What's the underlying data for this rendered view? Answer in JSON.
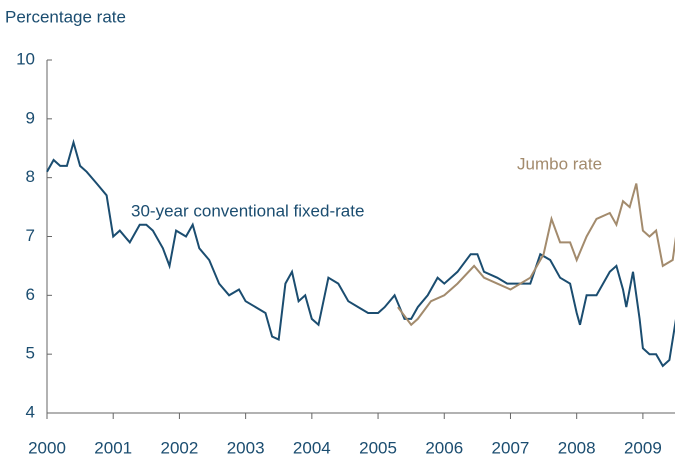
{
  "chart_data": {
    "type": "line",
    "y_axis_label": "Percentage rate",
    "annotations": [
      "30-year conventional fixed-rate",
      "Jumbo rate"
    ],
    "xlim": [
      2000,
      2009.5
    ],
    "xticks": [
      2000,
      2001,
      2002,
      2003,
      2004,
      2005,
      2006,
      2007,
      2008,
      2009
    ],
    "ylim": [
      4,
      10
    ],
    "yticks": [
      4,
      5,
      6,
      7,
      8,
      9,
      10
    ],
    "grid": false,
    "series": [
      {
        "name": "30-year conventional fixed-rate",
        "color": "#1b4d70",
        "x": [
          2000.0,
          2000.1,
          2000.2,
          2000.3,
          2000.4,
          2000.5,
          2000.6,
          2000.75,
          2000.9,
          2001.0,
          2001.1,
          2001.25,
          2001.4,
          2001.5,
          2001.6,
          2001.75,
          2001.85,
          2001.95,
          2002.1,
          2002.2,
          2002.3,
          2002.45,
          2002.6,
          2002.75,
          2002.9,
          2003.0,
          2003.15,
          2003.3,
          2003.4,
          2003.5,
          2003.6,
          2003.7,
          2003.8,
          2003.9,
          2004.0,
          2004.1,
          2004.25,
          2004.4,
          2004.55,
          2004.7,
          2004.85,
          2005.0,
          2005.1,
          2005.25,
          2005.4,
          2005.5,
          2005.6,
          2005.75,
          2005.9,
          2006.0,
          2006.2,
          2006.4,
          2006.5,
          2006.6,
          2006.8,
          2006.95,
          2007.1,
          2007.3,
          2007.45,
          2007.6,
          2007.75,
          2007.9,
          2008.0,
          2008.05,
          2008.15,
          2008.3,
          2008.5,
          2008.6,
          2008.7,
          2008.75,
          2008.85,
          2008.95,
          2009.0,
          2009.1,
          2009.2,
          2009.3,
          2009.4,
          2009.5
        ],
        "values": [
          8.1,
          8.3,
          8.2,
          8.2,
          8.6,
          8.2,
          8.1,
          7.9,
          7.7,
          7.0,
          7.1,
          6.9,
          7.2,
          7.2,
          7.1,
          6.8,
          6.5,
          7.1,
          7.0,
          7.2,
          6.8,
          6.6,
          6.2,
          6.0,
          6.1,
          5.9,
          5.8,
          5.7,
          5.3,
          5.25,
          6.2,
          6.4,
          5.9,
          6.0,
          5.6,
          5.5,
          6.3,
          6.2,
          5.9,
          5.8,
          5.7,
          5.7,
          5.8,
          6.0,
          5.6,
          5.6,
          5.8,
          6.0,
          6.3,
          6.2,
          6.4,
          6.7,
          6.7,
          6.4,
          6.3,
          6.2,
          6.2,
          6.2,
          6.7,
          6.6,
          6.3,
          6.2,
          5.7,
          5.5,
          6.0,
          6.0,
          6.4,
          6.5,
          6.1,
          5.8,
          6.4,
          5.6,
          5.1,
          5.0,
          5.0,
          4.8,
          4.9,
          5.6
        ]
      },
      {
        "name": "Jumbo rate",
        "color": "#a38b6d",
        "x": [
          2005.3,
          2005.5,
          2005.6,
          2005.8,
          2006.0,
          2006.2,
          2006.45,
          2006.6,
          2006.8,
          2007.0,
          2007.3,
          2007.5,
          2007.62,
          2007.75,
          2007.9,
          2008.0,
          2008.15,
          2008.3,
          2008.5,
          2008.6,
          2008.7,
          2008.8,
          2008.9,
          2009.0,
          2009.1,
          2009.2,
          2009.3,
          2009.45,
          2009.5
        ],
        "values": [
          5.8,
          5.5,
          5.6,
          5.9,
          6.0,
          6.2,
          6.5,
          6.3,
          6.2,
          6.1,
          6.3,
          6.7,
          7.3,
          6.9,
          6.9,
          6.6,
          7.0,
          7.3,
          7.4,
          7.2,
          7.6,
          7.5,
          7.9,
          7.1,
          7.0,
          7.1,
          6.5,
          6.6,
          7.0
        ]
      }
    ]
  }
}
